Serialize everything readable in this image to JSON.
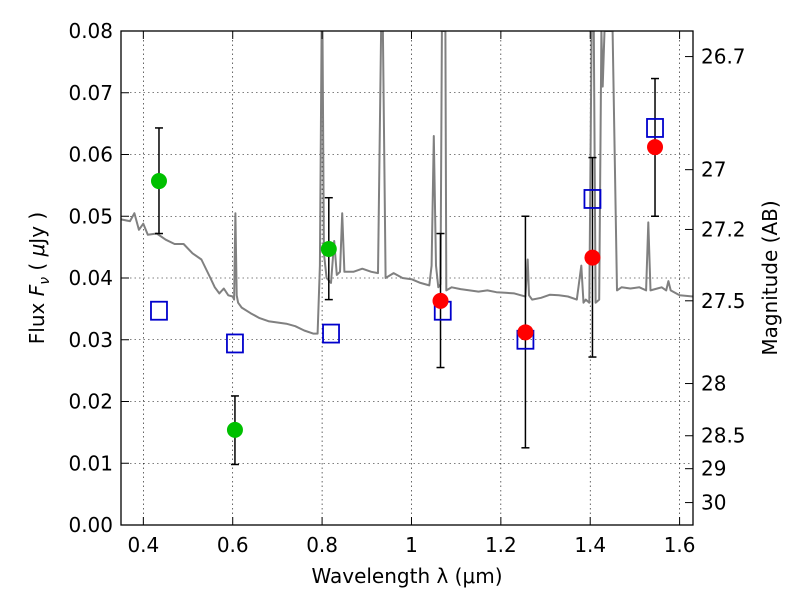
{
  "chart_data": {
    "type": "scatter",
    "title": "",
    "xlabel": "Wavelength  λ (μm)",
    "ylabel": "Flux  F_ν  ( μJy )",
    "y2label": "Magnitude (AB)",
    "xlim": [
      0.35,
      1.63
    ],
    "ylim": [
      0,
      0.08
    ],
    "grid": true,
    "x_ticks": [
      0.4,
      0.6,
      0.8,
      1.0,
      1.2,
      1.4,
      1.6
    ],
    "x_tick_labels": [
      "0.4",
      "0.6",
      "0.8",
      "1",
      "1.2",
      "1.4",
      "1.6"
    ],
    "y_ticks": [
      0.0,
      0.01,
      0.02,
      0.03,
      0.04,
      0.05,
      0.06,
      0.07,
      0.08
    ],
    "y_tick_labels": [
      "0.00",
      "0.01",
      "0.02",
      "0.03",
      "0.04",
      "0.05",
      "0.06",
      "0.07",
      "0.08"
    ],
    "y2_ticks": [
      26.7,
      27,
      27.2,
      27.5,
      28,
      28.5,
      29,
      30
    ],
    "y2_tick_labels": [
      "26.7",
      "27",
      "27.2",
      "27.5",
      "28",
      "28.5",
      "29",
      "30"
    ],
    "series": [
      {
        "kind": "line",
        "color": "#808080",
        "points": [
          [
            0.35,
            0.0495
          ],
          [
            0.37,
            0.0492
          ],
          [
            0.38,
            0.0505
          ],
          [
            0.39,
            0.0478
          ],
          [
            0.4,
            0.0488
          ],
          [
            0.41,
            0.047
          ],
          [
            0.43,
            0.0472
          ],
          [
            0.45,
            0.0462
          ],
          [
            0.47,
            0.0455
          ],
          [
            0.49,
            0.0455
          ],
          [
            0.51,
            0.044
          ],
          [
            0.53,
            0.043
          ],
          [
            0.55,
            0.04
          ],
          [
            0.56,
            0.0385
          ],
          [
            0.57,
            0.0375
          ],
          [
            0.58,
            0.0383
          ],
          [
            0.59,
            0.0372
          ],
          [
            0.6,
            0.037
          ],
          [
            0.603,
            0.0365
          ],
          [
            0.606,
            0.0505
          ],
          [
            0.609,
            0.0372
          ],
          [
            0.612,
            0.036
          ],
          [
            0.62,
            0.0352
          ],
          [
            0.64,
            0.0343
          ],
          [
            0.66,
            0.0335
          ],
          [
            0.68,
            0.033
          ],
          [
            0.7,
            0.0328
          ],
          [
            0.72,
            0.0326
          ],
          [
            0.74,
            0.0322
          ],
          [
            0.76,
            0.0315
          ],
          [
            0.78,
            0.031
          ],
          [
            0.79,
            0.031
          ],
          [
            0.795,
            0.042
          ],
          [
            0.799,
            0.08
          ],
          [
            0.801,
            0.08
          ],
          [
            0.804,
            0.044
          ],
          [
            0.81,
            0.04
          ],
          [
            0.82,
            0.0392
          ],
          [
            0.827,
            0.046
          ],
          [
            0.833,
            0.0405
          ],
          [
            0.84,
            0.041
          ],
          [
            0.845,
            0.0505
          ],
          [
            0.85,
            0.041
          ],
          [
            0.87,
            0.041
          ],
          [
            0.89,
            0.0415
          ],
          [
            0.91,
            0.041
          ],
          [
            0.925,
            0.0408
          ],
          [
            0.932,
            0.08
          ],
          [
            0.936,
            0.08
          ],
          [
            0.942,
            0.04
          ],
          [
            0.96,
            0.0408
          ],
          [
            0.98,
            0.04
          ],
          [
            1.0,
            0.0398
          ],
          [
            1.02,
            0.0392
          ],
          [
            1.04,
            0.0388
          ],
          [
            1.045,
            0.042
          ],
          [
            1.05,
            0.063
          ],
          [
            1.055,
            0.042
          ],
          [
            1.06,
            0.0385
          ],
          [
            1.065,
            0.039
          ],
          [
            1.068,
            0.08
          ],
          [
            1.072,
            0.08
          ],
          [
            1.076,
            0.08
          ],
          [
            1.078,
            0.038
          ],
          [
            1.09,
            0.0385
          ],
          [
            1.11,
            0.0382
          ],
          [
            1.13,
            0.038
          ],
          [
            1.15,
            0.0378
          ],
          [
            1.17,
            0.038
          ],
          [
            1.19,
            0.0377
          ],
          [
            1.21,
            0.0376
          ],
          [
            1.23,
            0.0375
          ],
          [
            1.245,
            0.0372
          ],
          [
            1.255,
            0.037
          ],
          [
            1.26,
            0.043
          ],
          [
            1.263,
            0.0372
          ],
          [
            1.27,
            0.0365
          ],
          [
            1.29,
            0.0368
          ],
          [
            1.31,
            0.0373
          ],
          [
            1.33,
            0.0372
          ],
          [
            1.35,
            0.037
          ],
          [
            1.37,
            0.0365
          ],
          [
            1.38,
            0.042
          ],
          [
            1.385,
            0.036
          ],
          [
            1.39,
            0.0365
          ],
          [
            1.398,
            0.036
          ],
          [
            1.403,
            0.08
          ],
          [
            1.408,
            0.08
          ],
          [
            1.412,
            0.036
          ],
          [
            1.42,
            0.0365
          ],
          [
            1.425,
            0.08
          ],
          [
            1.428,
            0.071
          ],
          [
            1.432,
            0.08
          ],
          [
            1.45,
            0.08
          ],
          [
            1.46,
            0.038
          ],
          [
            1.47,
            0.0385
          ],
          [
            1.49,
            0.0383
          ],
          [
            1.51,
            0.0385
          ],
          [
            1.525,
            0.038
          ],
          [
            1.53,
            0.049
          ],
          [
            1.535,
            0.038
          ],
          [
            1.55,
            0.0383
          ],
          [
            1.56,
            0.0385
          ],
          [
            1.57,
            0.038
          ],
          [
            1.575,
            0.0395
          ],
          [
            1.58,
            0.038
          ],
          [
            1.6,
            0.0372
          ],
          [
            1.63,
            0.037
          ]
        ]
      },
      {
        "kind": "markers",
        "marker": "circle",
        "color": "#00c000",
        "points": [
          {
            "x": 0.435,
            "y": 0.0557,
            "err_lo": 0.0472,
            "err_hi": 0.0643
          },
          {
            "x": 0.605,
            "y": 0.0154,
            "err_lo": 0.0098,
            "err_hi": 0.0209
          },
          {
            "x": 0.815,
            "y": 0.0447,
            "err_lo": 0.0365,
            "err_hi": 0.053
          }
        ]
      },
      {
        "kind": "markers",
        "marker": "circle",
        "color": "#ff0000",
        "points": [
          {
            "x": 1.065,
            "y": 0.0363,
            "err_lo": 0.0255,
            "err_hi": 0.0472
          },
          {
            "x": 1.255,
            "y": 0.0312,
            "err_lo": 0.0125,
            "err_hi": 0.05
          },
          {
            "x": 1.405,
            "y": 0.0433,
            "err_lo": 0.0272,
            "err_hi": 0.0595
          },
          {
            "x": 1.545,
            "y": 0.0612,
            "err_lo": 0.05,
            "err_hi": 0.0723
          }
        ]
      },
      {
        "kind": "markers",
        "marker": "open-square",
        "color": "#0000cc",
        "points": [
          {
            "x": 0.435,
            "y": 0.0347
          },
          {
            "x": 0.605,
            "y": 0.0294
          },
          {
            "x": 0.82,
            "y": 0.031
          },
          {
            "x": 1.07,
            "y": 0.0347
          },
          {
            "x": 1.255,
            "y": 0.03
          },
          {
            "x": 1.405,
            "y": 0.0528
          },
          {
            "x": 1.545,
            "y": 0.0643
          }
        ]
      }
    ]
  }
}
